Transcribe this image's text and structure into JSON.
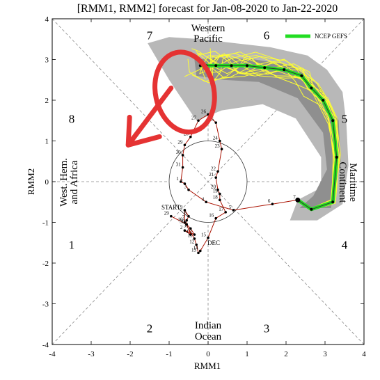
{
  "chart_data": {
    "type": "scatter",
    "title": "[RMM1, RMM2] forecast for Jan-08-2020 to Jan-22-2020",
    "xlabel": "RMM1",
    "ylabel": "RMM2",
    "xlim": [
      -4,
      4
    ],
    "ylim": [
      -4,
      4
    ],
    "x_ticks": [
      "-4",
      "-3",
      "-2",
      "-1",
      "0",
      "1",
      "2",
      "3",
      "4"
    ],
    "y_ticks": [
      "-4",
      "-3",
      "-2",
      "-1",
      "0",
      "1",
      "2",
      "3",
      "4"
    ],
    "legend": {
      "label": "NCEP GEFS",
      "placement": "top-right",
      "color": "#22dd22"
    },
    "phase_numbers": [
      {
        "label": "1",
        "x": -3.5,
        "y": -1.55
      },
      {
        "label": "2",
        "x": -1.5,
        "y": -3.6
      },
      {
        "label": "3",
        "x": 1.5,
        "y": -3.6
      },
      {
        "label": "4",
        "x": 3.5,
        "y": -1.55
      },
      {
        "label": "5",
        "x": 3.5,
        "y": 1.55
      },
      {
        "label": "6",
        "x": 1.5,
        "y": 3.6
      },
      {
        "label": "7",
        "x": -1.5,
        "y": 3.6
      },
      {
        "label": "8",
        "x": -3.5,
        "y": 1.55
      }
    ],
    "region_labels": {
      "top": [
        "Western",
        "Pacific"
      ],
      "bottom": [
        "Indian",
        "Ocean"
      ],
      "left": [
        "West. Hem.",
        "and Africa"
      ],
      "right": [
        "Maritime",
        "Continent"
      ]
    },
    "observed": {
      "color": "#aa1100",
      "start_label": "START",
      "month_label": "DEC",
      "points": [
        {
          "day": "29",
          "x": -0.95,
          "y": -0.85
        },
        {
          "day": "30",
          "x": -0.55,
          "y": -1.05
        },
        {
          "day": "31",
          "x": -0.45,
          "y": -1.15
        },
        {
          "day": "1",
          "x": -0.35,
          "y": -1.3
        },
        {
          "day": "2",
          "x": -0.6,
          "y": -1.2
        },
        {
          "day": "4",
          "x": -0.45,
          "y": -1.3
        },
        {
          "day": "5",
          "x": -0.55,
          "y": -1.05
        },
        {
          "day": "7",
          "x": -0.55,
          "y": -0.95
        },
        {
          "day": "8",
          "x": -0.5,
          "y": -0.85
        },
        {
          "day": "9",
          "x": -0.6,
          "y": -0.7
        },
        {
          "day": "10",
          "x": -0.6,
          "y": -1.0
        },
        {
          "day": "11",
          "x": -0.35,
          "y": -1.4
        },
        {
          "day": "12",
          "x": -0.3,
          "y": -1.55
        },
        {
          "day": "13",
          "x": -0.25,
          "y": -1.75
        },
        {
          "day": "14",
          "x": -0.2,
          "y": -1.7
        },
        {
          "day": "15",
          "x": 0.0,
          "y": -1.38
        },
        {
          "day": "16",
          "x": 0.2,
          "y": -0.9
        },
        {
          "day": "17",
          "x": 0.45,
          "y": -0.75
        },
        {
          "day": "18",
          "x": 0.3,
          "y": -0.45
        },
        {
          "day": "19",
          "x": 0.3,
          "y": -0.3
        },
        {
          "day": "20",
          "x": 0.25,
          "y": -0.2
        },
        {
          "day": "21",
          "x": 0.2,
          "y": 0.1
        },
        {
          "day": "22",
          "x": 0.25,
          "y": 0.25
        },
        {
          "day": "23",
          "x": 0.35,
          "y": 0.8
        },
        {
          "day": "24",
          "x": 0.3,
          "y": 1.0
        },
        {
          "day": "25",
          "x": 0.2,
          "y": 1.45
        },
        {
          "day": "26",
          "x": 0.0,
          "y": 1.65
        },
        {
          "day": "27",
          "x": -0.25,
          "y": 1.5
        },
        {
          "day": "28",
          "x": -0.45,
          "y": 1.1
        },
        {
          "day": "29",
          "x": -0.6,
          "y": 0.9
        },
        {
          "day": "30",
          "x": -0.65,
          "y": 0.65
        },
        {
          "day": "31",
          "x": -0.65,
          "y": 0.35
        },
        {
          "day": "1",
          "x": -0.7,
          "y": 0.0
        },
        {
          "day": "2",
          "x": -0.6,
          "y": -0.05
        },
        {
          "day": "3",
          "x": -0.5,
          "y": -0.2
        },
        {
          "day": "4",
          "x": -0.05,
          "y": -0.5
        },
        {
          "day": "5",
          "x": 0.65,
          "y": -0.7
        },
        {
          "day": "6",
          "x": 1.65,
          "y": -0.55
        },
        {
          "day": "7",
          "x": 2.3,
          "y": -0.45
        }
      ]
    },
    "ensemble_mean": {
      "name": "NCEP GEFS",
      "color": "#22dd22",
      "points": [
        {
          "x": 2.3,
          "y": -0.45
        },
        {
          "x": 2.65,
          "y": -0.68
        },
        {
          "x": 3.2,
          "y": -0.5
        },
        {
          "x": 3.3,
          "y": 0.6
        },
        {
          "x": 3.2,
          "y": 1.5
        },
        {
          "x": 2.95,
          "y": 2.0
        },
        {
          "x": 2.65,
          "y": 2.3
        },
        {
          "x": 2.4,
          "y": 2.6
        },
        {
          "x": 1.95,
          "y": 2.75
        },
        {
          "x": 1.45,
          "y": 2.8
        },
        {
          "x": 1.0,
          "y": 2.85
        },
        {
          "x": 0.6,
          "y": 2.85
        },
        {
          "x": 0.2,
          "y": 2.85
        },
        {
          "x": -0.05,
          "y": 2.85
        },
        {
          "x": -0.2,
          "y": 2.85
        }
      ]
    },
    "uncertainty_band": {
      "color": "#aaaaaa",
      "outer": [
        {
          "x": 2.1,
          "y": -0.95
        },
        {
          "x": 2.8,
          "y": -0.95
        },
        {
          "x": 3.45,
          "y": -0.55
        },
        {
          "x": 3.6,
          "y": 0.4
        },
        {
          "x": 3.55,
          "y": 1.4
        },
        {
          "x": 3.45,
          "y": 2.2
        },
        {
          "x": 3.05,
          "y": 2.75
        },
        {
          "x": 2.55,
          "y": 3.1
        },
        {
          "x": 1.6,
          "y": 3.3
        },
        {
          "x": 0.7,
          "y": 3.4
        },
        {
          "x": -0.2,
          "y": 3.5
        },
        {
          "x": -1.0,
          "y": 3.55
        },
        {
          "x": -1.55,
          "y": 3.4
        },
        {
          "x": -1.0,
          "y": 2.5
        },
        {
          "x": -0.3,
          "y": 1.5
        },
        {
          "x": 0.35,
          "y": 1.75
        },
        {
          "x": 1.4,
          "y": 1.9
        },
        {
          "x": 2.25,
          "y": 1.55
        },
        {
          "x": 2.9,
          "y": 0.6
        },
        {
          "x": 2.9,
          "y": -0.15
        },
        {
          "x": 2.3,
          "y": -0.45
        }
      ],
      "inner": [
        {
          "x": 2.35,
          "y": -0.65
        },
        {
          "x": 3.15,
          "y": -0.65
        },
        {
          "x": 3.4,
          "y": 0.5
        },
        {
          "x": 3.35,
          "y": 1.5
        },
        {
          "x": 2.9,
          "y": 2.3
        },
        {
          "x": 2.2,
          "y": 2.85
        },
        {
          "x": 1.2,
          "y": 3.0
        },
        {
          "x": 0.3,
          "y": 3.05
        },
        {
          "x": -0.35,
          "y": 3.0
        },
        {
          "x": -0.3,
          "y": 2.6
        },
        {
          "x": 0.4,
          "y": 2.5
        },
        {
          "x": 1.3,
          "y": 2.45
        },
        {
          "x": 2.3,
          "y": 2.05
        },
        {
          "x": 2.95,
          "y": 1.2
        },
        {
          "x": 3.05,
          "y": 0.3
        },
        {
          "x": 2.7,
          "y": -0.35
        }
      ]
    },
    "member_color": "#ffff33",
    "annotation": {
      "type": "red hand-drawn loop and arrow",
      "color": "#e53333",
      "loop_center": {
        "x": -0.6,
        "y": 2.2
      },
      "arrow_from": {
        "x": -0.95,
        "y": 2.3
      },
      "arrow_to": {
        "x": -2.05,
        "y": 0.9
      }
    }
  }
}
